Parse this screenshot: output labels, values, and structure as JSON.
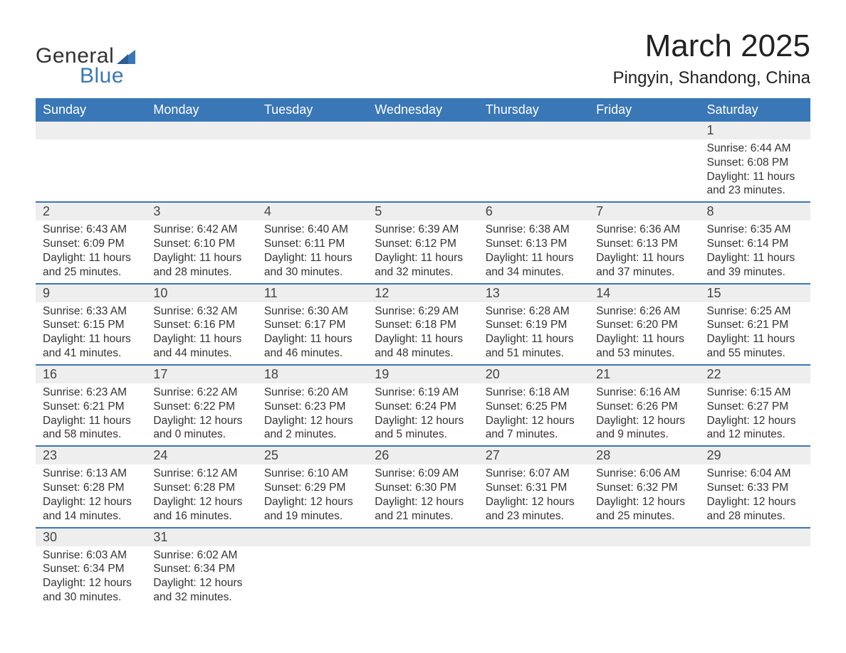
{
  "brand": {
    "name1": "General",
    "name2": "Blue",
    "accent": "#3a77b7"
  },
  "title": {
    "month": "March 2025",
    "location": "Pingyin, Shandong, China"
  },
  "calendar": {
    "header_bg": "#3a77b7",
    "header_fg": "#ffffff",
    "daynum_bg": "#eeeeee",
    "border_color": "#3a77b7",
    "text_color": "#333333",
    "fontsize_header": 18,
    "fontsize_daynum": 18,
    "fontsize_body": 15.5,
    "columns": [
      "Sunday",
      "Monday",
      "Tuesday",
      "Wednesday",
      "Thursday",
      "Friday",
      "Saturday"
    ],
    "weeks": [
      [
        {
          "n": "",
          "sr": "",
          "ss": "",
          "dl": ""
        },
        {
          "n": "",
          "sr": "",
          "ss": "",
          "dl": ""
        },
        {
          "n": "",
          "sr": "",
          "ss": "",
          "dl": ""
        },
        {
          "n": "",
          "sr": "",
          "ss": "",
          "dl": ""
        },
        {
          "n": "",
          "sr": "",
          "ss": "",
          "dl": ""
        },
        {
          "n": "",
          "sr": "",
          "ss": "",
          "dl": ""
        },
        {
          "n": "1",
          "sr": "Sunrise: 6:44 AM",
          "ss": "Sunset: 6:08 PM",
          "dl": "Daylight: 11 hours and 23 minutes."
        }
      ],
      [
        {
          "n": "2",
          "sr": "Sunrise: 6:43 AM",
          "ss": "Sunset: 6:09 PM",
          "dl": "Daylight: 11 hours and 25 minutes."
        },
        {
          "n": "3",
          "sr": "Sunrise: 6:42 AM",
          "ss": "Sunset: 6:10 PM",
          "dl": "Daylight: 11 hours and 28 minutes."
        },
        {
          "n": "4",
          "sr": "Sunrise: 6:40 AM",
          "ss": "Sunset: 6:11 PM",
          "dl": "Daylight: 11 hours and 30 minutes."
        },
        {
          "n": "5",
          "sr": "Sunrise: 6:39 AM",
          "ss": "Sunset: 6:12 PM",
          "dl": "Daylight: 11 hours and 32 minutes."
        },
        {
          "n": "6",
          "sr": "Sunrise: 6:38 AM",
          "ss": "Sunset: 6:13 PM",
          "dl": "Daylight: 11 hours and 34 minutes."
        },
        {
          "n": "7",
          "sr": "Sunrise: 6:36 AM",
          "ss": "Sunset: 6:13 PM",
          "dl": "Daylight: 11 hours and 37 minutes."
        },
        {
          "n": "8",
          "sr": "Sunrise: 6:35 AM",
          "ss": "Sunset: 6:14 PM",
          "dl": "Daylight: 11 hours and 39 minutes."
        }
      ],
      [
        {
          "n": "9",
          "sr": "Sunrise: 6:33 AM",
          "ss": "Sunset: 6:15 PM",
          "dl": "Daylight: 11 hours and 41 minutes."
        },
        {
          "n": "10",
          "sr": "Sunrise: 6:32 AM",
          "ss": "Sunset: 6:16 PM",
          "dl": "Daylight: 11 hours and 44 minutes."
        },
        {
          "n": "11",
          "sr": "Sunrise: 6:30 AM",
          "ss": "Sunset: 6:17 PM",
          "dl": "Daylight: 11 hours and 46 minutes."
        },
        {
          "n": "12",
          "sr": "Sunrise: 6:29 AM",
          "ss": "Sunset: 6:18 PM",
          "dl": "Daylight: 11 hours and 48 minutes."
        },
        {
          "n": "13",
          "sr": "Sunrise: 6:28 AM",
          "ss": "Sunset: 6:19 PM",
          "dl": "Daylight: 11 hours and 51 minutes."
        },
        {
          "n": "14",
          "sr": "Sunrise: 6:26 AM",
          "ss": "Sunset: 6:20 PM",
          "dl": "Daylight: 11 hours and 53 minutes."
        },
        {
          "n": "15",
          "sr": "Sunrise: 6:25 AM",
          "ss": "Sunset: 6:21 PM",
          "dl": "Daylight: 11 hours and 55 minutes."
        }
      ],
      [
        {
          "n": "16",
          "sr": "Sunrise: 6:23 AM",
          "ss": "Sunset: 6:21 PM",
          "dl": "Daylight: 11 hours and 58 minutes."
        },
        {
          "n": "17",
          "sr": "Sunrise: 6:22 AM",
          "ss": "Sunset: 6:22 PM",
          "dl": "Daylight: 12 hours and 0 minutes."
        },
        {
          "n": "18",
          "sr": "Sunrise: 6:20 AM",
          "ss": "Sunset: 6:23 PM",
          "dl": "Daylight: 12 hours and 2 minutes."
        },
        {
          "n": "19",
          "sr": "Sunrise: 6:19 AM",
          "ss": "Sunset: 6:24 PM",
          "dl": "Daylight: 12 hours and 5 minutes."
        },
        {
          "n": "20",
          "sr": "Sunrise: 6:18 AM",
          "ss": "Sunset: 6:25 PM",
          "dl": "Daylight: 12 hours and 7 minutes."
        },
        {
          "n": "21",
          "sr": "Sunrise: 6:16 AM",
          "ss": "Sunset: 6:26 PM",
          "dl": "Daylight: 12 hours and 9 minutes."
        },
        {
          "n": "22",
          "sr": "Sunrise: 6:15 AM",
          "ss": "Sunset: 6:27 PM",
          "dl": "Daylight: 12 hours and 12 minutes."
        }
      ],
      [
        {
          "n": "23",
          "sr": "Sunrise: 6:13 AM",
          "ss": "Sunset: 6:28 PM",
          "dl": "Daylight: 12 hours and 14 minutes."
        },
        {
          "n": "24",
          "sr": "Sunrise: 6:12 AM",
          "ss": "Sunset: 6:28 PM",
          "dl": "Daylight: 12 hours and 16 minutes."
        },
        {
          "n": "25",
          "sr": "Sunrise: 6:10 AM",
          "ss": "Sunset: 6:29 PM",
          "dl": "Daylight: 12 hours and 19 minutes."
        },
        {
          "n": "26",
          "sr": "Sunrise: 6:09 AM",
          "ss": "Sunset: 6:30 PM",
          "dl": "Daylight: 12 hours and 21 minutes."
        },
        {
          "n": "27",
          "sr": "Sunrise: 6:07 AM",
          "ss": "Sunset: 6:31 PM",
          "dl": "Daylight: 12 hours and 23 minutes."
        },
        {
          "n": "28",
          "sr": "Sunrise: 6:06 AM",
          "ss": "Sunset: 6:32 PM",
          "dl": "Daylight: 12 hours and 25 minutes."
        },
        {
          "n": "29",
          "sr": "Sunrise: 6:04 AM",
          "ss": "Sunset: 6:33 PM",
          "dl": "Daylight: 12 hours and 28 minutes."
        }
      ],
      [
        {
          "n": "30",
          "sr": "Sunrise: 6:03 AM",
          "ss": "Sunset: 6:34 PM",
          "dl": "Daylight: 12 hours and 30 minutes."
        },
        {
          "n": "31",
          "sr": "Sunrise: 6:02 AM",
          "ss": "Sunset: 6:34 PM",
          "dl": "Daylight: 12 hours and 32 minutes."
        },
        {
          "n": "",
          "sr": "",
          "ss": "",
          "dl": ""
        },
        {
          "n": "",
          "sr": "",
          "ss": "",
          "dl": ""
        },
        {
          "n": "",
          "sr": "",
          "ss": "",
          "dl": ""
        },
        {
          "n": "",
          "sr": "",
          "ss": "",
          "dl": ""
        },
        {
          "n": "",
          "sr": "",
          "ss": "",
          "dl": ""
        }
      ]
    ]
  }
}
